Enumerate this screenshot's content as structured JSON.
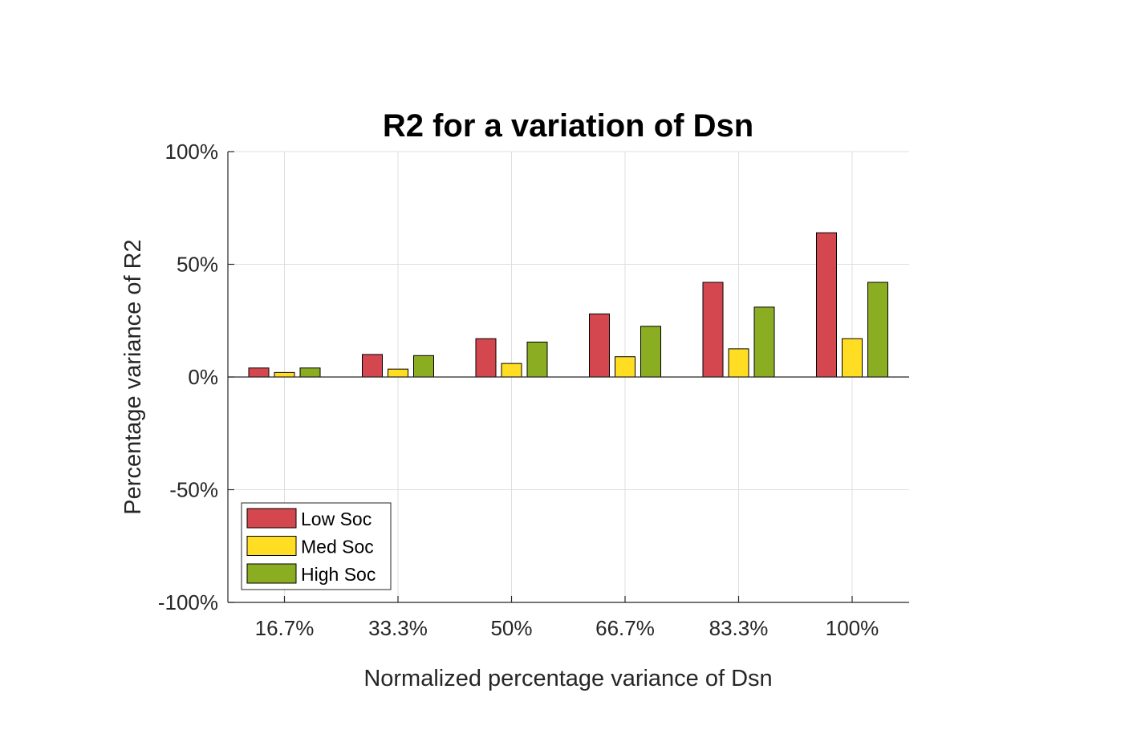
{
  "chart_data": {
    "type": "bar",
    "title": "R2 for a variation of Dsn",
    "xlabel": "Normalized percentage variance of Dsn",
    "ylabel": "Percentage variance of R2",
    "categories": [
      "16.7%",
      "33.3%",
      "50%",
      "66.7%",
      "83.3%",
      "100%"
    ],
    "series": [
      {
        "name": "Low Soc",
        "color": "#D4474F",
        "values": [
          4,
          10,
          17,
          28,
          42,
          64
        ]
      },
      {
        "name": "Med Soc",
        "color": "#FFDD22",
        "values": [
          2,
          3.5,
          6,
          9,
          12.5,
          17
        ]
      },
      {
        "name": "High Soc",
        "color": "#8BAD22",
        "values": [
          4,
          9.5,
          15.5,
          22.5,
          31,
          42
        ]
      }
    ],
    "ylim": [
      -100,
      100
    ],
    "yticks": [
      -100,
      -50,
      0,
      50,
      100
    ],
    "ytick_labels": [
      "-100%",
      "-50%",
      "0%",
      "50%",
      "100%"
    ],
    "grid": true,
    "legend_position": "bottom-left"
  }
}
